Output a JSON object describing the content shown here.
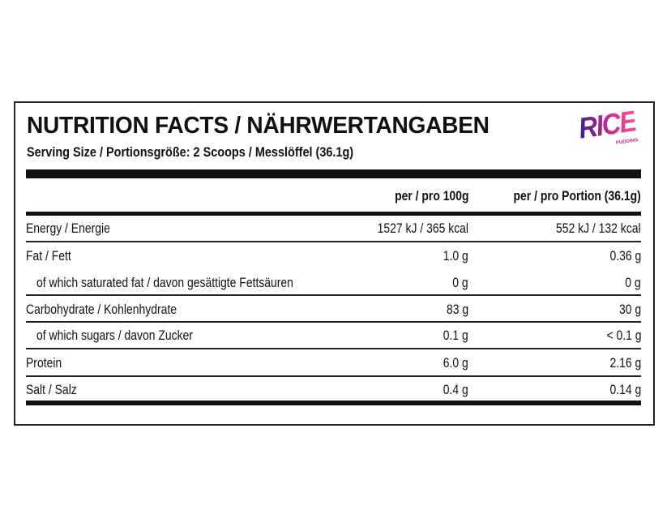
{
  "header": {
    "title": "NUTRITION FACTS / NÄHRWERTANGABEN",
    "serving_size": "Serving Size / Portionsgröße: 2 Scoops / Messlöffel (36.1g)",
    "logo": {
      "text": "RICE",
      "subtext": "PUDDING"
    }
  },
  "table": {
    "column_headers": [
      "per / pro 100g",
      "per / pro Portion (36.1g)"
    ],
    "rows": [
      {
        "label": "Energy / Energie",
        "per_100g": "1527 kJ / 365 kcal",
        "per_portion": "552 kJ / 132 kcal"
      },
      {
        "label": "Fat / Fett",
        "per_100g": "1.0 g",
        "per_portion": "0.36 g"
      },
      {
        "label": "of which saturated fat / davon gesättigte Fettsäuren",
        "per_100g": "0 g",
        "per_portion": "0 g",
        "sub": true
      },
      {
        "label": "Carbohydrate / Kohlenhydrate",
        "per_100g": "83 g",
        "per_portion": "30 g"
      },
      {
        "label": "of which sugars / davon Zucker",
        "per_100g": "0.1 g",
        "per_portion": "< 0.1 g",
        "sub": true
      },
      {
        "label": "Protein",
        "per_100g": "6.0 g",
        "per_portion": "2.16 g"
      },
      {
        "label": "Salt / Salz",
        "per_100g": "0.4 g",
        "per_portion": "0.14 g"
      }
    ]
  }
}
